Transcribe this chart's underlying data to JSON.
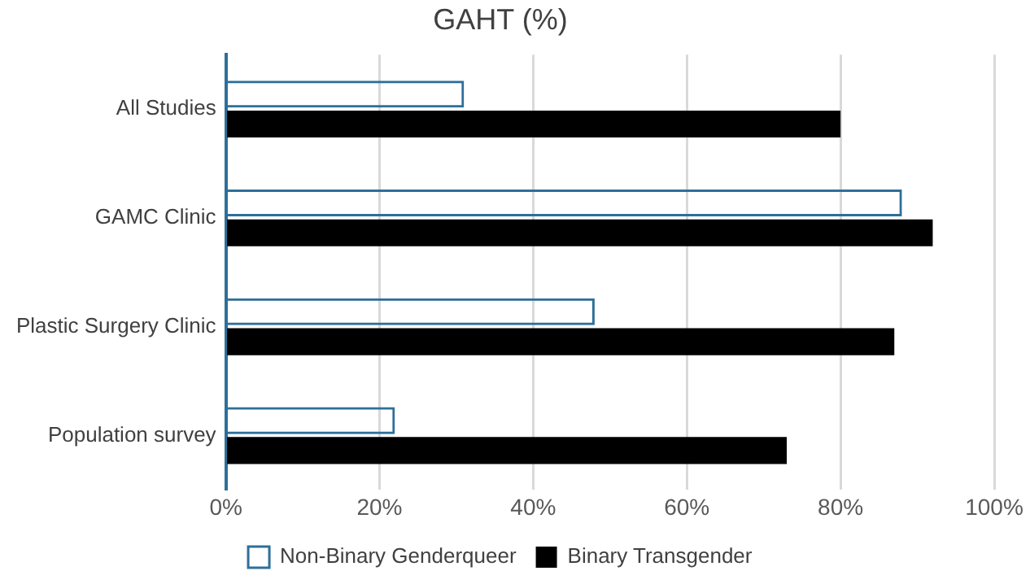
{
  "chart_data": {
    "type": "bar",
    "orientation": "horizontal",
    "title": "GAHT (%)",
    "categories": [
      "All Studies",
      "GAMC Clinic",
      "Plastic Surgery Clinic",
      "Population survey"
    ],
    "series": [
      {
        "name": "Non-Binary Genderqueer",
        "color": "#2e6f99",
        "values": [
          31,
          88,
          48,
          22
        ]
      },
      {
        "name": "Binary Transgender",
        "color": "#000000",
        "values": [
          80,
          92,
          87,
          73
        ]
      }
    ],
    "xlim": [
      0,
      100
    ],
    "xticks": [
      {
        "value": 0,
        "label": "0%"
      },
      {
        "value": 20,
        "label": "20%"
      },
      {
        "value": 40,
        "label": "40%"
      },
      {
        "value": 60,
        "label": "60%"
      },
      {
        "value": 80,
        "label": "80%"
      },
      {
        "value": 100,
        "label": "100%"
      }
    ],
    "grid": "x",
    "legend": "bottom"
  }
}
